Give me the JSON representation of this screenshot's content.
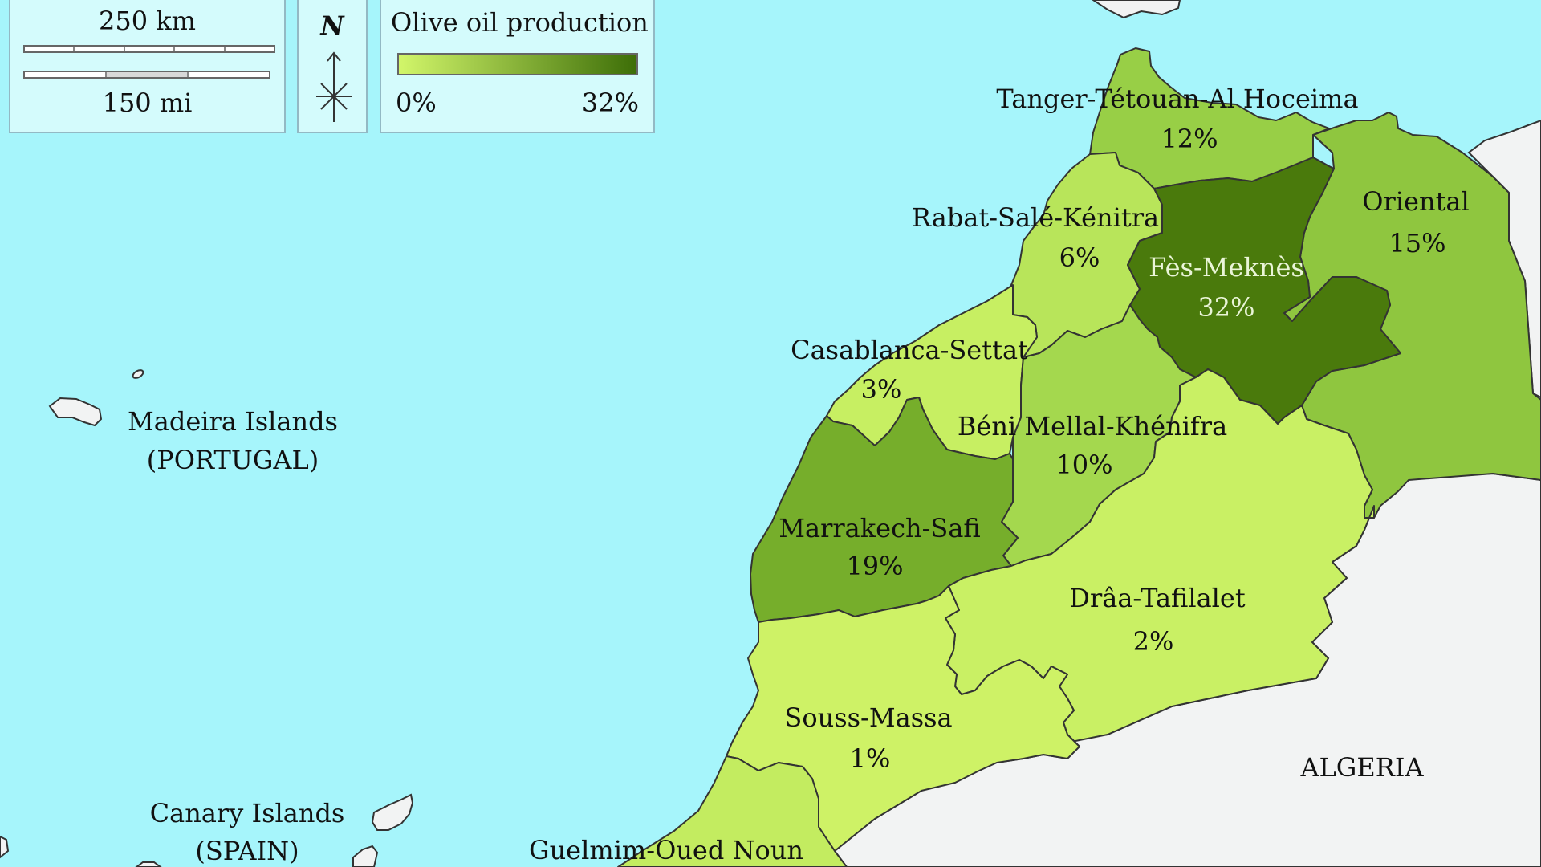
{
  "legend": {
    "title": "Olive oil production",
    "min_label": "0%",
    "max_label": "32%",
    "color_low": "#d2f66a",
    "color_high": "#3d6e08"
  },
  "scale": {
    "km_label": "250 km",
    "mi_label": "150 mi"
  },
  "north_label": "N",
  "colors": {
    "sea": "#a6f5fb",
    "foreign_land": "#f2f3f3",
    "border": "#333333"
  },
  "regions": [
    {
      "id": "tanger",
      "name": "Tanger-Tétouan-Al Hoceima",
      "share": "12%",
      "value": 12,
      "fill": "#98cf46"
    },
    {
      "id": "oriental",
      "name": "Oriental",
      "share": "15%",
      "value": 15,
      "fill": "#8fc63f"
    },
    {
      "id": "fes",
      "name": "Fès-Meknès",
      "share": "32%",
      "value": 32,
      "fill": "#4a7a0c"
    },
    {
      "id": "rabat",
      "name": "Rabat-Salé-Kénitra",
      "share": "6%",
      "value": 6,
      "fill": "#b8e55a"
    },
    {
      "id": "casa",
      "name": "Casablanca-Settat",
      "share": "3%",
      "value": 3,
      "fill": "#c7ef62"
    },
    {
      "id": "beni",
      "name": "Béni Mellal-Khénifra",
      "share": "10%",
      "value": 10,
      "fill": "#a4d84e"
    },
    {
      "id": "marrakech",
      "name": "Marrakech-Safi",
      "share": "19%",
      "value": 19,
      "fill": "#76ae2b"
    },
    {
      "id": "draa",
      "name": "Drâa-Tafilalet",
      "share": "2%",
      "value": 2,
      "fill": "#c9f064"
    },
    {
      "id": "souss",
      "name": "Souss-Massa",
      "share": "1%",
      "value": 1,
      "fill": "#cef266"
    },
    {
      "id": "guelmim",
      "name": "Guelmim-Oued Noun",
      "share": "",
      "value": null,
      "fill": "#c3ec60"
    }
  ],
  "places": {
    "madeira_line1": "Madeira Islands",
    "madeira_line2": "(PORTUGAL)",
    "canary_line1": "Canary Islands",
    "canary_line2": "(SPAIN)",
    "algeria": "ALGERIA"
  }
}
